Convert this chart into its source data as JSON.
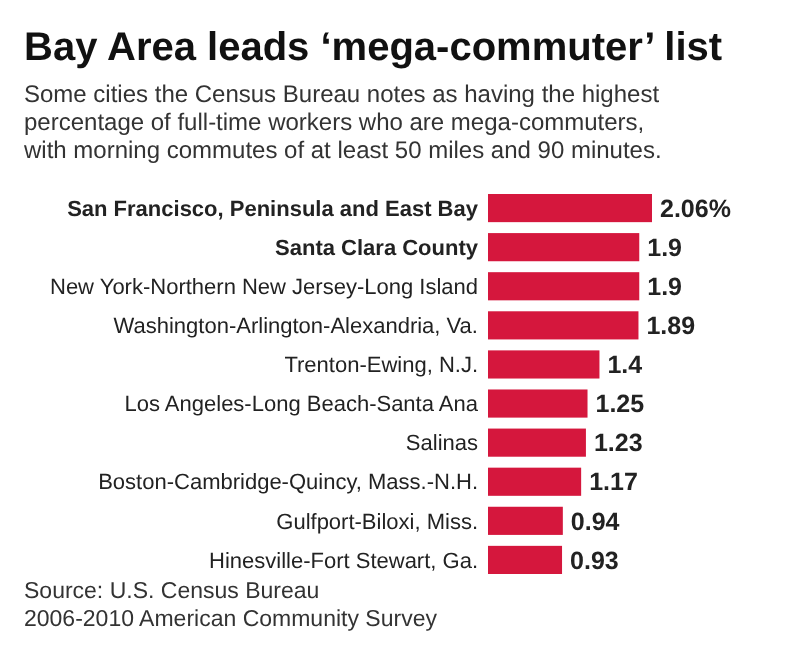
{
  "chart_data": {
    "type": "bar",
    "orientation": "horizontal",
    "title": "Bay Area leads ‘mega-commuter’ list",
    "subtitle": "Some cities the Census Bureau notes as having the highest percentage of full-time workers who are mega-commuters, with morning commutes of at least 50 miles and 90 minutes.",
    "categories": [
      "San Francisco, Peninsula and East Bay",
      "Santa Clara County",
      "New York-Northern New Jersey-Long Island",
      "Washington-Arlington-Alexandria, Va.",
      "Trenton-Ewing, N.J.",
      "Los Angeles-Long Beach-Santa Ana",
      "Salinas",
      "Boston-Cambridge-Quincy, Mass.-N.H.",
      "Gulfport-Biloxi, Miss.",
      "Hinesville-Fort Stewart, Ga."
    ],
    "values": [
      2.06,
      1.9,
      1.9,
      1.89,
      1.4,
      1.25,
      1.23,
      1.17,
      0.94,
      0.93
    ],
    "value_labels": [
      "2.06%",
      "1.9",
      "1.9",
      "1.89",
      "1.4",
      "1.25",
      "1.23",
      "1.17",
      "0.94",
      "0.93"
    ],
    "color": "#d5173d",
    "annotations": [
      "Source: U.S. Census Bureau",
      "2006-2010 American Community Survey"
    ]
  }
}
